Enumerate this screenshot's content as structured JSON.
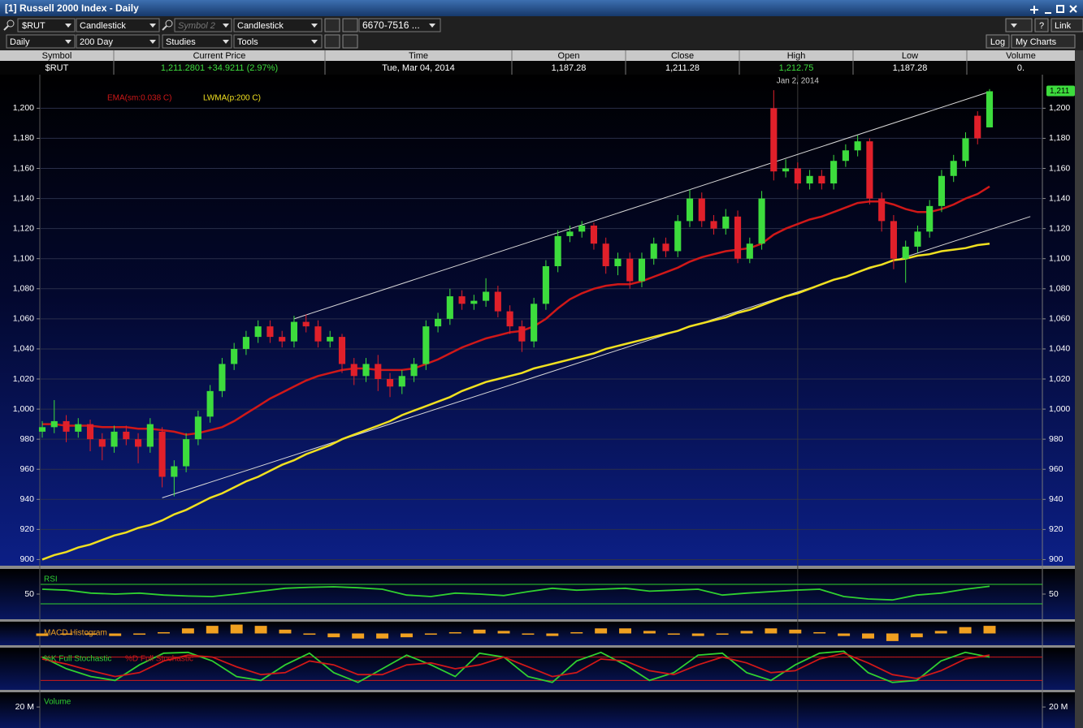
{
  "window": {
    "title": "[1] Russell 2000 Index - Daily"
  },
  "toolbar": {
    "symbol": "$RUT",
    "chart_type": "Candlestick",
    "symbol2": "Symbol 2",
    "chart_type2": "Candlestick",
    "range": "6670-7516 ...",
    "period": "Daily",
    "span": "200 Day",
    "studies": "Studies",
    "tools": "Tools",
    "log": "Log",
    "layout": "My Charts",
    "link": "Link",
    "help": "?"
  },
  "quote": {
    "headers": [
      "Symbol",
      "Current Price",
      "Time",
      "Open",
      "Close",
      "High",
      "Low",
      "Volume"
    ],
    "values": [
      "$RUT",
      "1,211.2801 +34.9211 (2.97%)",
      "Tue, Mar 04, 2014",
      "1,187.28",
      "1,211.28",
      "1,212.75",
      "1,187.28",
      "0."
    ],
    "colors": [
      "#ffffff",
      "#3ddc3d",
      "#ffffff",
      "#ffffff",
      "#ffffff",
      "#3ddc3d",
      "#ffffff",
      "#ffffff"
    ]
  },
  "chart_data": [
    {
      "type": "candlestick",
      "up_color": "#3ddc3d",
      "down_color": "#e0202a",
      "open": [
        985,
        988,
        992,
        985,
        990,
        980,
        975,
        985,
        980,
        975,
        985,
        955,
        962,
        980,
        995,
        1012,
        1030,
        1040,
        1048,
        1055,
        1048,
        1045,
        1058,
        1055,
        1045,
        1048,
        1030,
        1022,
        1030,
        1020,
        1015,
        1022,
        1030,
        1055,
        1060,
        1075,
        1070,
        1072,
        1078,
        1065,
        1055,
        1045,
        1070,
        1095,
        1115,
        1118,
        1122,
        1110,
        1095,
        1100,
        1085,
        1100,
        1110,
        1105,
        1125,
        1140,
        1125,
        1120,
        1128,
        1100,
        1110,
        1200,
        1158,
        1160,
        1150,
        1155,
        1150,
        1165,
        1172,
        1178,
        1140,
        1125,
        1100,
        1108,
        1118,
        1135,
        1155,
        1165,
        1195,
        1187.28
      ],
      "high": [
        992,
        1006,
        996,
        994,
        993,
        984,
        989,
        989,
        984,
        994,
        988,
        966,
        984,
        999,
        1016,
        1034,
        1044,
        1052,
        1059,
        1059,
        1052,
        1062,
        1063,
        1059,
        1052,
        1050,
        1034,
        1034,
        1036,
        1024,
        1026,
        1034,
        1059,
        1064,
        1080,
        1079,
        1076,
        1087,
        1082,
        1069,
        1059,
        1074,
        1099,
        1119,
        1122,
        1125,
        1124,
        1114,
        1104,
        1104,
        1104,
        1114,
        1114,
        1129,
        1146,
        1144,
        1129,
        1133,
        1132,
        1114,
        1145,
        1212,
        1166,
        1164,
        1159,
        1159,
        1169,
        1176,
        1182,
        1180,
        1144,
        1129,
        1112,
        1122,
        1139,
        1159,
        1169,
        1184,
        1198,
        1212.75
      ],
      "low": [
        981,
        984,
        978,
        981,
        972,
        966,
        971,
        976,
        964,
        971,
        948,
        942,
        958,
        976,
        991,
        1008,
        1026,
        1036,
        1044,
        1044,
        1041,
        1041,
        1051,
        1041,
        1041,
        1024,
        1016,
        1018,
        1012,
        1008,
        1010,
        1018,
        1026,
        1051,
        1056,
        1066,
        1066,
        1068,
        1061,
        1050,
        1038,
        1041,
        1066,
        1091,
        1111,
        1114,
        1106,
        1090,
        1089,
        1080,
        1081,
        1096,
        1101,
        1101,
        1121,
        1121,
        1116,
        1116,
        1097,
        1097,
        1106,
        1152,
        1154,
        1146,
        1146,
        1146,
        1146,
        1161,
        1168,
        1136,
        1118,
        1093,
        1084,
        1104,
        1114,
        1131,
        1151,
        1161,
        1176,
        1187.28
      ],
      "close": [
        988,
        992,
        985,
        990,
        980,
        975,
        985,
        980,
        975,
        990,
        955,
        962,
        980,
        995,
        1012,
        1030,
        1040,
        1048,
        1055,
        1048,
        1045,
        1058,
        1055,
        1045,
        1048,
        1030,
        1022,
        1030,
        1020,
        1015,
        1022,
        1030,
        1055,
        1060,
        1075,
        1070,
        1072,
        1078,
        1065,
        1055,
        1045,
        1070,
        1095,
        1115,
        1118,
        1122,
        1110,
        1095,
        1100,
        1085,
        1100,
        1110,
        1105,
        1125,
        1140,
        1125,
        1120,
        1128,
        1100,
        1110,
        1140,
        1158,
        1160,
        1150,
        1155,
        1150,
        1165,
        1172,
        1178,
        1140,
        1125,
        1100,
        1108,
        1118,
        1135,
        1155,
        1165,
        1180,
        1180,
        1211.28
      ],
      "overlays": [
        {
          "name": "EMA(sm:0.038 C)",
          "color": "#d01818",
          "values": [
            990,
            990,
            989,
            989,
            989,
            988,
            988,
            988,
            987,
            987,
            986,
            985,
            983,
            984,
            986,
            988,
            992,
            997,
            1002,
            1007,
            1011,
            1015,
            1019,
            1022,
            1024,
            1026,
            1027,
            1027,
            1026,
            1026,
            1026,
            1027,
            1030,
            1033,
            1037,
            1041,
            1044,
            1047,
            1049,
            1051,
            1052,
            1055,
            1060,
            1067,
            1073,
            1077,
            1080,
            1082,
            1083,
            1083,
            1085,
            1088,
            1091,
            1094,
            1098,
            1101,
            1103,
            1105,
            1106,
            1107,
            1110,
            1116,
            1120,
            1123,
            1126,
            1128,
            1131,
            1134,
            1137,
            1138,
            1138,
            1136,
            1133,
            1131,
            1131,
            1133,
            1136,
            1140,
            1143,
            1148
          ]
        },
        {
          "name": "LWMA(p:200 C)",
          "color": "#f0e020",
          "values": [
            900,
            903,
            905,
            908,
            910,
            913,
            916,
            918,
            921,
            923,
            926,
            930,
            933,
            937,
            941,
            944,
            948,
            952,
            955,
            959,
            963,
            966,
            970,
            973,
            976,
            980,
            983,
            986,
            989,
            992,
            996,
            999,
            1002,
            1005,
            1008,
            1012,
            1015,
            1018,
            1020,
            1022,
            1024,
            1027,
            1029,
            1031,
            1033,
            1035,
            1037,
            1040,
            1042,
            1044,
            1046,
            1048,
            1050,
            1052,
            1055,
            1057,
            1059,
            1061,
            1064,
            1066,
            1069,
            1072,
            1075,
            1077,
            1080,
            1083,
            1086,
            1088,
            1091,
            1094,
            1096,
            1099,
            1100,
            1102,
            1103,
            1105,
            1106,
            1107,
            1109,
            1110
          ]
        }
      ],
      "trendlines": [
        {
          "x": [
            21,
            79
          ],
          "y": [
            1060,
            1211
          ]
        },
        {
          "x": [
            10,
            82.4
          ],
          "y": [
            941,
            1128
          ]
        }
      ],
      "trendline_color": "#d8d8d8",
      "annotation": {
        "text": "Jan 2, 2014",
        "index": 63
      },
      "last_price_label": "1,211",
      "ylim": [
        897,
        1218
      ],
      "yticks": [
        900,
        920,
        940,
        960,
        980,
        {
          "value": 1000,
          "label": "1,000"
        },
        {
          "value": 1020,
          "label": "1,020"
        },
        {
          "value": 1040,
          "label": "1,040"
        },
        {
          "value": 1060,
          "label": "1,060"
        },
        {
          "value": 1080,
          "label": "1,080"
        },
        {
          "value": 1100,
          "label": "1,100"
        },
        {
          "value": 1120,
          "label": "1,120"
        },
        {
          "value": 1140,
          "label": "1,140"
        },
        {
          "value": 1160,
          "label": "1,160"
        },
        {
          "value": 1180,
          "label": "1,180"
        },
        {
          "value": 1200,
          "label": "1,200"
        }
      ],
      "grid": true
    },
    {
      "type": "line",
      "title": "RSI",
      "title_color": "#30d030",
      "series": [
        {
          "color": "#30d030",
          "values": [
            60,
            58,
            52,
            50,
            52,
            48,
            46,
            45,
            50,
            56,
            62,
            64,
            65,
            63,
            60,
            48,
            45,
            52,
            50,
            47,
            55,
            62,
            58,
            60,
            62,
            56,
            58,
            60,
            48,
            52,
            55,
            58,
            60,
            45,
            40,
            38,
            48,
            52,
            60,
            66
          ]
        }
      ],
      "bands": [
        30,
        70
      ],
      "band_color": "#30d030",
      "ylim": [
        0,
        100
      ],
      "yticks": [
        50
      ]
    },
    {
      "type": "histogram",
      "title": "MACD Histogram",
      "title_color": "#f0a020",
      "color": "#f0a020",
      "values": [
        -2,
        -1,
        -1,
        -2,
        -1,
        1,
        4,
        6,
        7,
        6,
        3,
        -1,
        -3,
        -4,
        -4,
        -3,
        -1,
        1,
        3,
        2,
        -1,
        -2,
        1,
        4,
        4,
        2,
        -1,
        -2,
        -1,
        2,
        4,
        3,
        1,
        -2,
        -4,
        -6,
        -3,
        2,
        5,
        6
      ],
      "ylim": [
        -8,
        8
      ]
    },
    {
      "type": "line",
      "series": [
        {
          "name": "%K Full Stochastic",
          "color": "#30d030",
          "values": [
            80,
            50,
            30,
            20,
            60,
            90,
            92,
            70,
            30,
            20,
            60,
            90,
            40,
            15,
            50,
            85,
            60,
            30,
            90,
            80,
            30,
            15,
            70,
            92,
            60,
            20,
            40,
            85,
            90,
            40,
            20,
            60,
            90,
            95,
            40,
            15,
            20,
            70,
            92,
            80
          ]
        },
        {
          "name": "%D Full Stochastic",
          "color": "#d01818",
          "values": [
            75,
            62,
            45,
            30,
            40,
            70,
            85,
            80,
            55,
            35,
            40,
            70,
            60,
            35,
            35,
            60,
            65,
            50,
            60,
            80,
            55,
            30,
            40,
            75,
            70,
            45,
            35,
            60,
            80,
            65,
            40,
            45,
            75,
            90,
            65,
            35,
            25,
            45,
            75,
            85
          ]
        }
      ],
      "bands": [
        20,
        80
      ],
      "band_color": "#d01818",
      "ylim": [
        0,
        100
      ]
    },
    {
      "type": "volume",
      "title": "Volume",
      "title_color": "#30d030",
      "ylim": [
        0,
        34000000
      ],
      "yticks": [
        {
          "value": 20000000,
          "label": "20 M"
        }
      ]
    }
  ]
}
